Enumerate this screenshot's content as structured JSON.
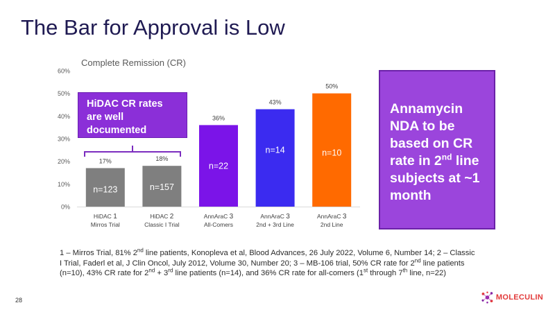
{
  "slide": {
    "title": "The Bar for Approval is Low",
    "page_number": "28"
  },
  "chart_data": {
    "type": "bar",
    "title": "Complete Remission (CR)",
    "categories": [
      {
        "line1": "HiDAC",
        "sup": "1",
        "line2": "Mirros Trial"
      },
      {
        "line1": "HiDAC",
        "sup": "2",
        "line2": "Classic I Trial"
      },
      {
        "line1": "AnnAraC",
        "sup": "3",
        "line2": "All-Comers"
      },
      {
        "line1": "AnnAraC",
        "sup": "3",
        "line2": "2nd + 3rd Line"
      },
      {
        "line1": "AnnAraC",
        "sup": "3",
        "line2": "2nd Line"
      }
    ],
    "values": [
      17,
      18,
      36,
      43,
      50
    ],
    "value_labels": [
      "17%",
      "18%",
      "36%",
      "43%",
      "50%"
    ],
    "n_labels": [
      "n=123",
      "n=157",
      "n=22",
      "n=14",
      "n=10"
    ],
    "colors": [
      "#7f7f7f",
      "#7f7f7f",
      "#7b14e8",
      "#3b2bf0",
      "#ff6a00"
    ],
    "ylim": [
      0,
      60
    ],
    "yticks": [
      0,
      10,
      20,
      30,
      40,
      50,
      60
    ],
    "ytick_labels": [
      "0%",
      "10%",
      "20%",
      "30%",
      "40%",
      "50%",
      "60%"
    ],
    "xlabel": "",
    "ylabel": ""
  },
  "callouts": {
    "hidac": {
      "text": "HiDAC CR rates are well documented"
    },
    "nda": {
      "main": "Annamycin NDA to be based on CR rate in 2",
      "sup": "nd",
      "rest": " line subjects at ~1 month"
    }
  },
  "footnote": {
    "p1": "1 – Mirros Trial, 81% 2",
    "s1": "nd",
    "p2": " line patients, Konopleva et al, Blood Advances, 26 July 2022, Volume 6, Number 14; 2 – Classic I Trial, Faderl et al, J Clin Oncol, July 2012, Volume 30, Number 20; 3 – MB-106 trial, 50% CR rate for 2",
    "s2": "nd",
    "p3": " line patients (n=10), 43% CR rate for 2",
    "s3": "nd",
    "p4": " + 3",
    "s4": "rd",
    "p5": " line patients  (n=14), and 36% CR rate for all-comers (1",
    "s5": "st",
    "p6": " through 7",
    "s6": "th",
    "p7": " line, n=22)"
  },
  "logo": {
    "text": "MOLECULIN",
    "icon": "molecule-icon"
  }
}
